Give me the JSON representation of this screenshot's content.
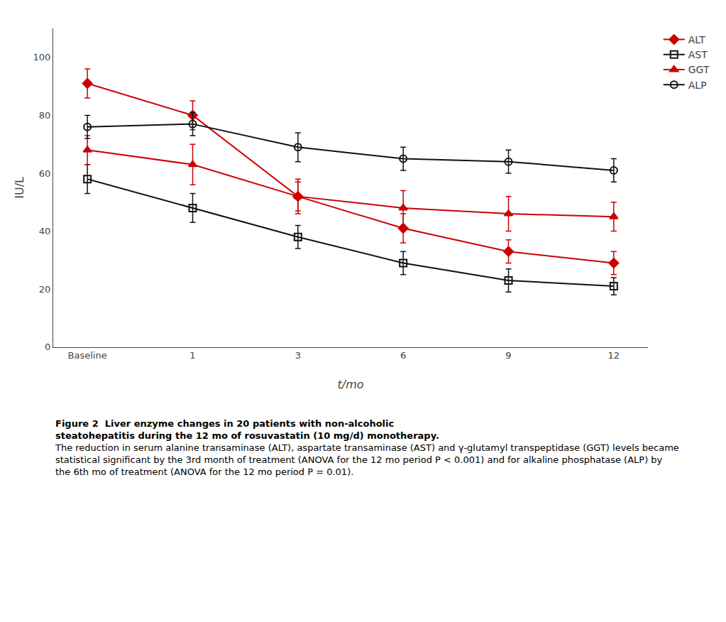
{
  "chart_data": {
    "type": "line",
    "categories": [
      "Baseline",
      "1",
      "3",
      "6",
      "9",
      "12"
    ],
    "series": [
      {
        "name": "ALT",
        "color": "#cc0000",
        "marker": "diamond",
        "values": [
          91,
          80,
          52,
          41,
          33,
          29
        ],
        "errors": [
          5,
          5,
          5,
          5,
          4,
          4
        ]
      },
      {
        "name": "AST",
        "color": "#111111",
        "marker": "square-open",
        "values": [
          58,
          48,
          38,
          29,
          23,
          21
        ],
        "errors": [
          5,
          5,
          4,
          4,
          4,
          3
        ]
      },
      {
        "name": "GGT",
        "color": "#cc0000",
        "marker": "triangle-up",
        "values": [
          68,
          63,
          52,
          48,
          46,
          45
        ],
        "errors": [
          5,
          7,
          6,
          6,
          6,
          5
        ]
      },
      {
        "name": "ALP",
        "color": "#111111",
        "marker": "circle-open",
        "values": [
          76,
          77,
          69,
          65,
          64,
          61
        ],
        "errors": [
          4,
          4,
          5,
          4,
          4,
          4
        ]
      }
    ],
    "xlabel": "t/mo",
    "ylabel": "IU/L",
    "ylim": [
      0,
      110
    ],
    "yticks": [
      0,
      20,
      40,
      60,
      80,
      100
    ],
    "grid": false,
    "legend": "top right",
    "annotations": [
      "Figure 2  Liver enzyme changes in 20 patients with non-alcoholic",
      "steatohepatitis during the 12 mo of rosuvastatin (10 mg/d) monotherapy.",
      "The reduction in serum alanine transaminase (ALT), aspartate transaminase (AST) and γ-glutamyl transpeptidase (GGT) levels became statistical significant by the 3rd month of treatment (ANOVA for the 12 mo period P < 0.001) and for alkaline phosphatase (ALP) by the 6th mo of treatment (ANOVA for the 12 mo period P = 0.01)."
    ]
  }
}
